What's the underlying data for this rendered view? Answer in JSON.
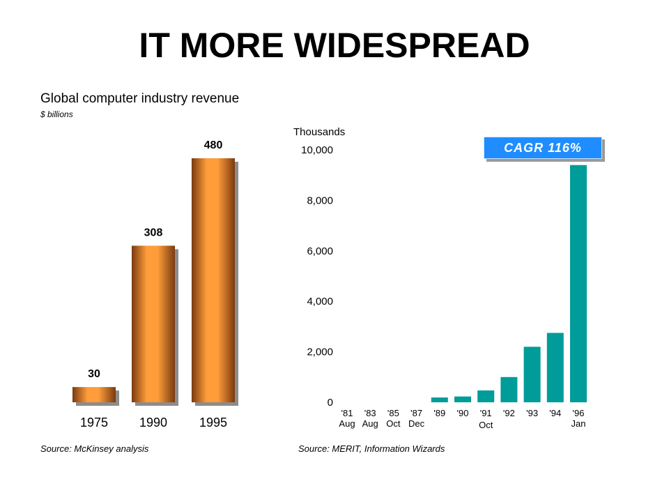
{
  "title": "IT MORE WIDESPREAD",
  "chart_data": [
    {
      "type": "bar",
      "title": "Global computer industry revenue",
      "subtitle": "$ billions",
      "categories": [
        "1975",
        "1990",
        "1995"
      ],
      "values": [
        30,
        308,
        480
      ],
      "data_labels": [
        "30",
        "308",
        "480"
      ],
      "source": "Source: McKinsey analysis",
      "colors": {
        "bar_light": "#ff9d3a",
        "bar_dark": "#7a3a10",
        "shadow": "#8c8c8c"
      }
    },
    {
      "type": "bar",
      "ylabel": "Thousands",
      "ylim": [
        0,
        10000
      ],
      "yticks": [
        "0",
        "2,000",
        "4,000",
        "6,000",
        "8,000",
        "10,000"
      ],
      "ytick_values": [
        0,
        2000,
        4000,
        6000,
        8000,
        10000
      ],
      "categories": [
        "'81",
        "'83",
        "'85",
        "'87",
        "'89",
        "'90",
        "'91",
        "'92",
        "'93",
        "'94",
        "'96"
      ],
      "sublabels": [
        "Aug",
        "Aug",
        "Oct",
        "Dec",
        "",
        "",
        "Oct",
        "",
        "",
        "",
        "Jan"
      ],
      "values": [
        0,
        0,
        0,
        0,
        190,
        230,
        470,
        1000,
        2200,
        2750,
        9400
      ],
      "annotation": "CAGR 116%",
      "source": "Source: MERIT, Information Wizards",
      "colors": {
        "bar": "#009c9a",
        "badge": "#1f8dff"
      }
    }
  ]
}
